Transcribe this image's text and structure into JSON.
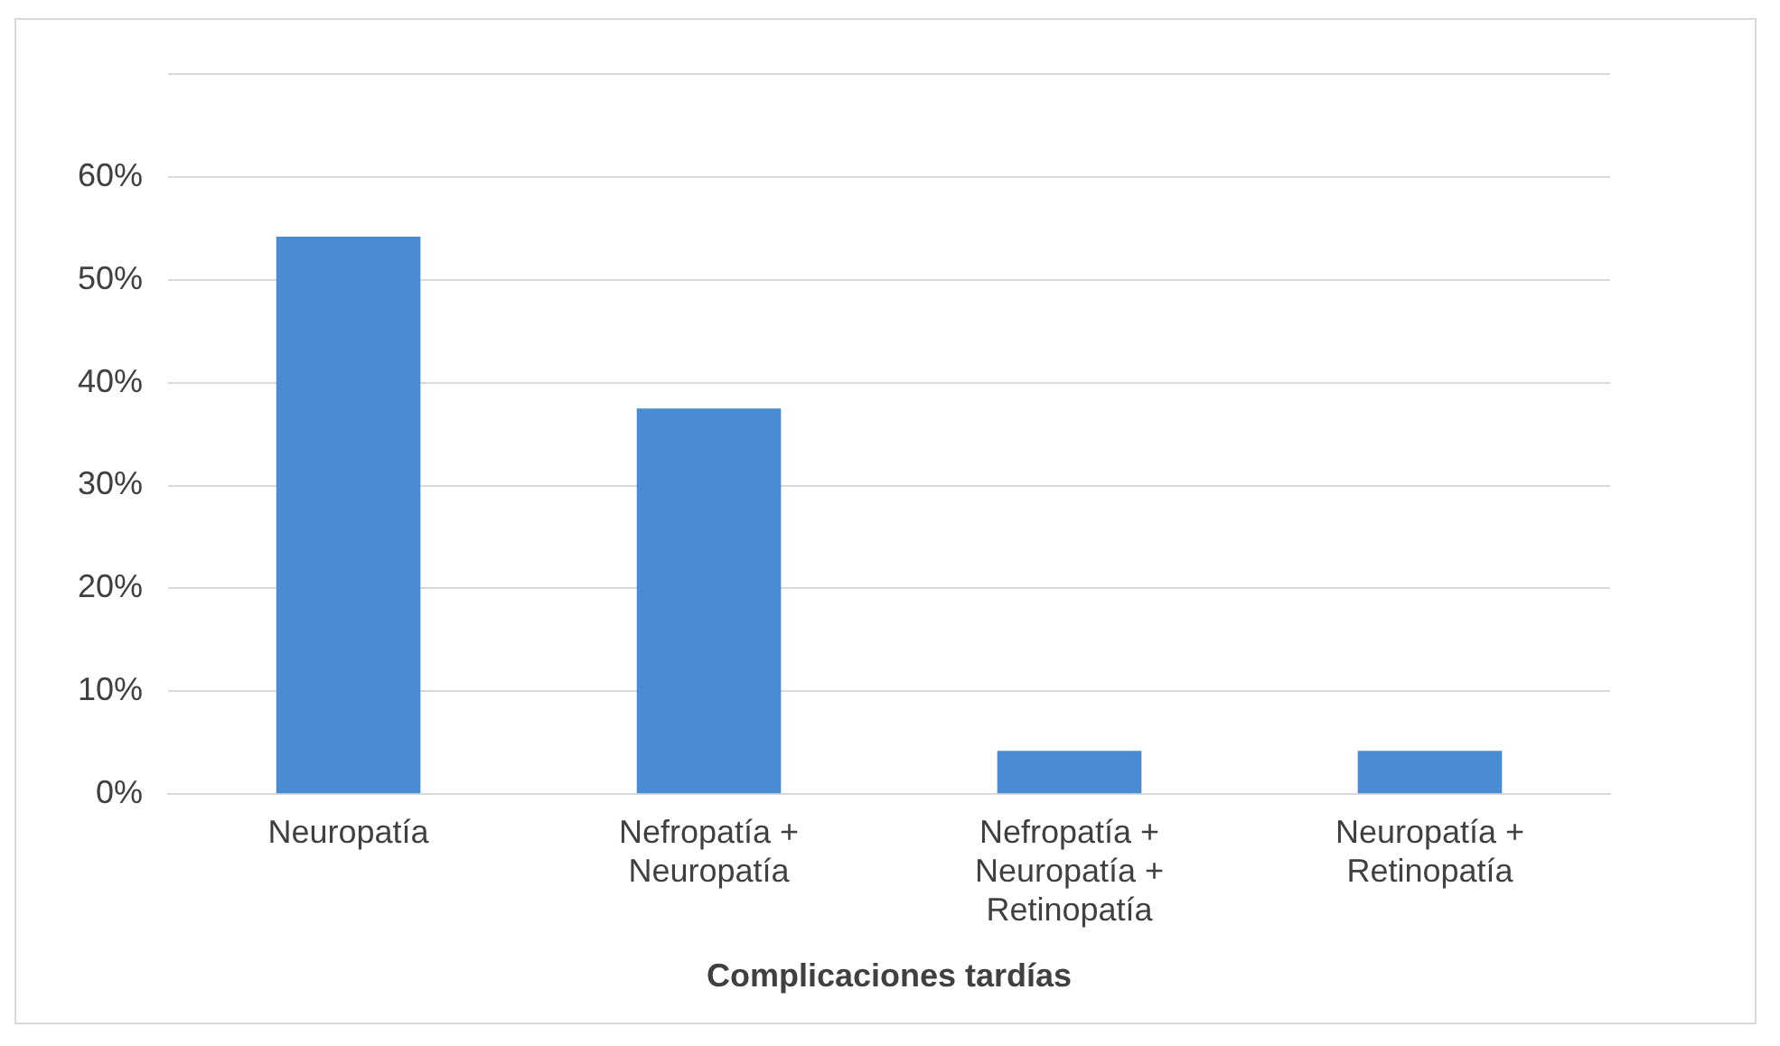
{
  "chart_data": {
    "type": "bar",
    "xlabel": "Complicaciones tardías",
    "categories": [
      "Neuropatía",
      "Nefropatía + Neuropatía",
      "Nefropatía + Neuropatía + Retinopatía",
      "Neuropatía + Retinopatía"
    ],
    "values": [
      54.2,
      37.5,
      4.2,
      4.2
    ],
    "color": "#4a8cd4",
    "ylim": [
      0,
      70
    ],
    "yticks": [
      {
        "value": 0,
        "label": "0%"
      },
      {
        "value": 10,
        "label": "10%"
      },
      {
        "value": 20,
        "label": "20%"
      },
      {
        "value": 30,
        "label": "30%"
      },
      {
        "value": 40,
        "label": "40%"
      },
      {
        "value": 50,
        "label": "50%"
      },
      {
        "value": 60,
        "label": "60%"
      },
      {
        "value": 70,
        "label": null
      }
    ],
    "grid": "y",
    "legend": false
  }
}
